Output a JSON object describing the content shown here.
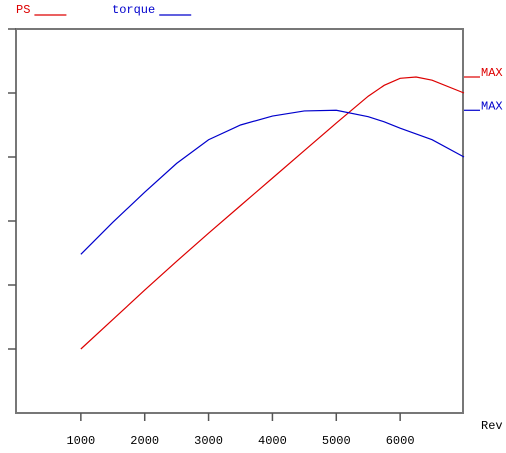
{
  "chart_data": {
    "type": "line",
    "x_label": "Rev",
    "x": [
      1000,
      1500,
      2000,
      2500,
      3000,
      3500,
      4000,
      4500,
      5000,
      5500,
      5750,
      6000,
      6250,
      6500,
      7000
    ],
    "series": [
      {
        "name": "PS",
        "color": "#dd0000",
        "label": "MAX",
        "values": [
          1.0,
          1.46,
          1.92,
          2.37,
          2.81,
          3.24,
          3.67,
          4.1,
          4.53,
          4.95,
          5.12,
          5.23,
          5.25,
          5.2,
          5.0
        ]
      },
      {
        "name": "torque",
        "color": "#0000cc",
        "label": "MAX",
        "values": [
          2.48,
          2.98,
          3.45,
          3.9,
          4.27,
          4.5,
          4.64,
          4.72,
          4.73,
          4.63,
          4.55,
          4.45,
          4.36,
          4.27,
          4.0
        ]
      }
    ],
    "xlim": [
      0,
      7000
    ],
    "xticks": [
      1000,
      2000,
      3000,
      4000,
      5000,
      6000
    ],
    "ylim": [
      0,
      6
    ],
    "yticks": [
      1,
      2,
      3,
      4,
      5,
      6
    ]
  }
}
